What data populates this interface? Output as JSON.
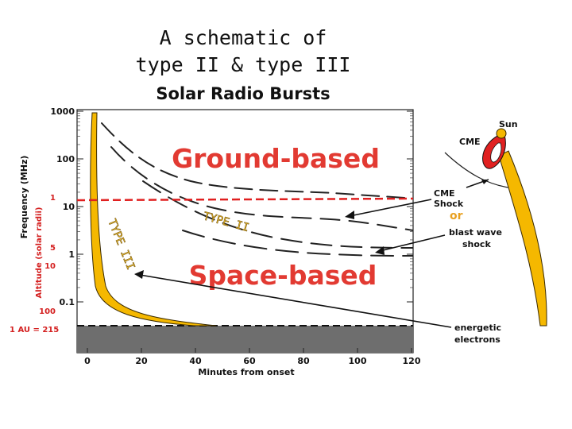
{
  "title": {
    "line1": "A schematic of",
    "line2": "type II & type III",
    "line3": "Solar Radio Bursts"
  },
  "chart_data": {
    "type": "diagram",
    "title": "Solar Radio Bursts",
    "xlabel": "Minutes from onset",
    "ylabel": "Frequency (MHz)",
    "ylabel_secondary": "Altitude (solar radii)",
    "x_ticks": [
      "0",
      "20",
      "40",
      "60",
      "80",
      "100",
      "120"
    ],
    "y_ticks": [
      "1000",
      "100",
      "10",
      "1",
      "0.1"
    ],
    "altitude_ticks": [
      "1",
      "5",
      "10",
      "100"
    ],
    "au_label": "1 AU = 215",
    "xlim": [
      0,
      120
    ],
    "ylim_mhz": [
      0.02,
      1000
    ],
    "y_scale": "log",
    "regions": [
      "Ground-based",
      "Space-based"
    ],
    "burst_labels": [
      "TYPE II",
      "TYPE III"
    ],
    "colors": {
      "type3": "#f5b800",
      "dashed_divider": "#e02020",
      "regions_text": "#e23a32",
      "ground_band": "#6e6e6e"
    }
  },
  "annotations": {
    "sun": "Sun",
    "cme": "CME",
    "cme_shock": "CME\nShock",
    "or": "or",
    "blast_wave": "blast wave\nshock",
    "electrons": "energetic\nelectrons"
  }
}
